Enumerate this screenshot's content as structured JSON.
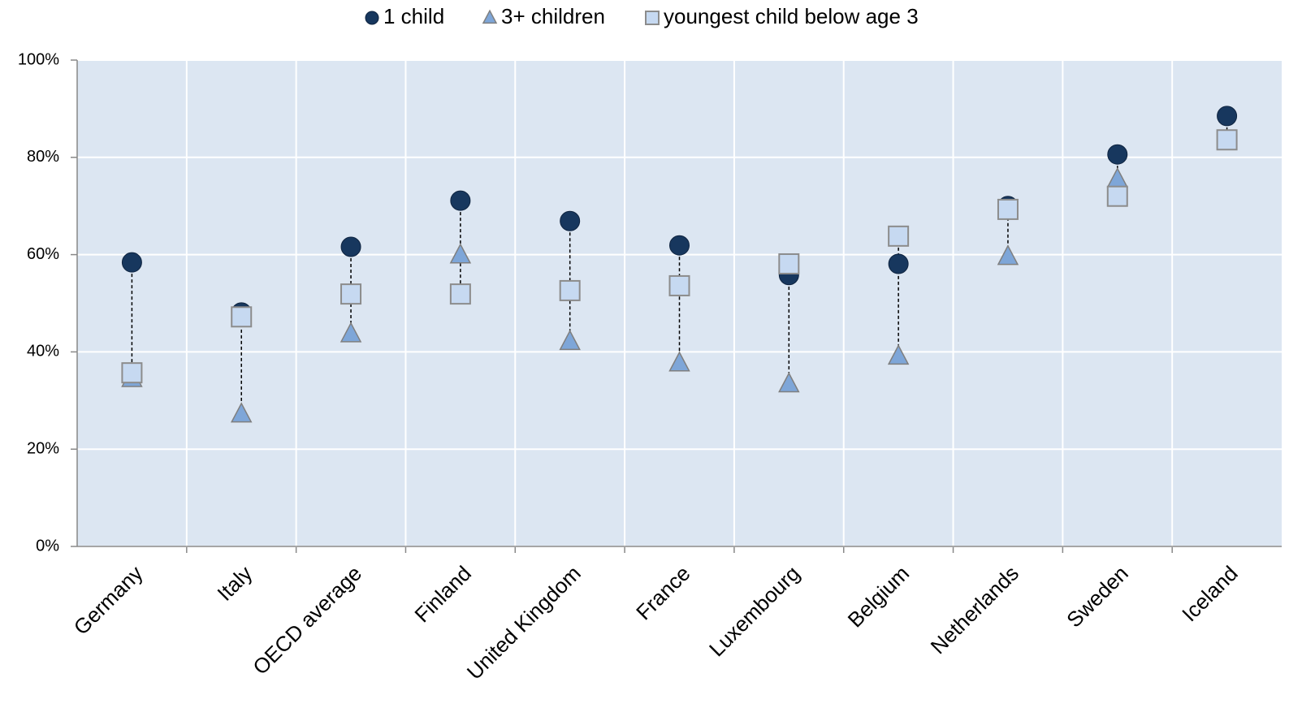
{
  "chart_data": {
    "type": "scatter",
    "categories": [
      "Germany",
      "Italy",
      "OECD average",
      "Finland",
      "United Kingdom",
      "France",
      "Luxembourg",
      "Belgium",
      "Netherlands",
      "Sweden",
      "Iceland"
    ],
    "series": [
      {
        "name": "1 child",
        "color": "#17375e",
        "marker": "circle",
        "values": [
          58.4,
          48.1,
          61.6,
          71.1,
          66.9,
          61.9,
          55.8,
          58.1,
          70,
          80.6,
          88.5
        ]
      },
      {
        "name": "3+ children",
        "color": "#7ea6d8",
        "marker": "triangle",
        "values": [
          34.5,
          27.2,
          43.7,
          59.9,
          42.1,
          37.7,
          33.4,
          39.1,
          59.6,
          75.5,
          null
        ]
      },
      {
        "name": "youngest child below age 3",
        "color": "#c6d9f1",
        "marker": "square",
        "values": [
          35.7,
          47.2,
          51.9,
          51.9,
          52.6,
          53.6,
          58.1,
          63.8,
          69.3,
          72,
          83.6
        ]
      }
    ],
    "ylim": [
      0,
      100
    ],
    "yticks": [
      {
        "value": 0,
        "label": "0%"
      },
      {
        "value": 20,
        "label": "20%"
      },
      {
        "value": 40,
        "label": "40%"
      },
      {
        "value": 60,
        "label": "60%"
      },
      {
        "value": 80,
        "label": "80%"
      },
      {
        "value": 100,
        "label": "100%"
      }
    ],
    "grid": true,
    "legend": "top"
  }
}
